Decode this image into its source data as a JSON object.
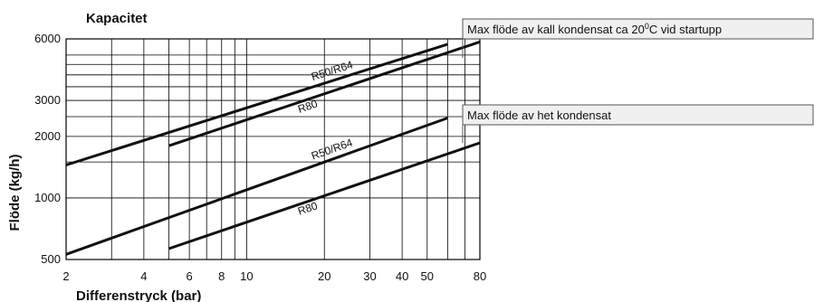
{
  "chart_data": {
    "type": "line",
    "title": "Kapacitet",
    "xlabel": "Differenstryck (bar)",
    "ylabel": "Flöde (kg/h)",
    "xscale": "log",
    "yscale": "log",
    "xlim": [
      2,
      80
    ],
    "ylim": [
      500,
      6000
    ],
    "x_ticks": [
      2,
      4,
      6,
      8,
      10,
      20,
      30,
      40,
      50,
      80
    ],
    "x_tick_labels": [
      "2",
      "4",
      "6",
      "8",
      "10",
      "20",
      "30",
      "40",
      "50",
      "80"
    ],
    "x_gridlines": [
      2,
      3,
      4,
      5,
      6,
      7,
      8,
      9,
      10,
      20,
      30,
      40,
      50,
      60,
      70,
      80
    ],
    "y_ticks": [
      500,
      1000,
      2000,
      3000,
      6000
    ],
    "y_tick_labels": [
      "500",
      "1000",
      "2000",
      "3000",
      "6000"
    ],
    "y_gridlines": [
      500,
      1000,
      1500,
      2000,
      2500,
      3000,
      3500,
      4000,
      4500,
      5000,
      6000
    ],
    "grid": true,
    "groups": [
      {
        "name": "Max flöde av kall kondensat ca 20°C vid startupp",
        "series": [
          {
            "label": "R50/R64",
            "x": [
              2,
              60
            ],
            "y": [
              1450,
              5650
            ]
          },
          {
            "label": "R80",
            "x": [
              5,
              80
            ],
            "y": [
              1800,
              5800
            ]
          }
        ]
      },
      {
        "name": "Max flöde av het kondensat",
        "series": [
          {
            "label": "R50/R64",
            "x": [
              2,
              60
            ],
            "y": [
              530,
              2460
            ]
          },
          {
            "label": "R80",
            "x": [
              5,
              80
            ],
            "y": [
              565,
              1860
            ]
          }
        ]
      }
    ],
    "callouts": [
      {
        "text_main": "Max flöde av kall kondensat ca 20",
        "text_sup": "0",
        "text_end": "C vid startupp"
      },
      {
        "text_main": "Max flöde av het kondensat",
        "text_sup": "",
        "text_end": ""
      }
    ]
  }
}
